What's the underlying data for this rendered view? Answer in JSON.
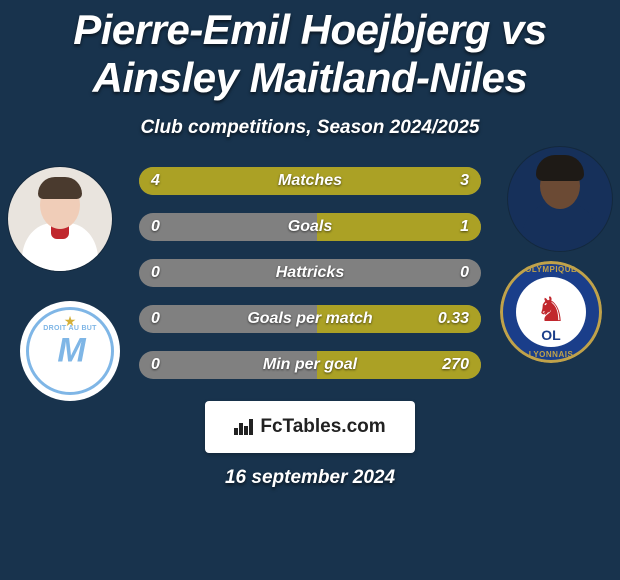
{
  "background_color": "#18334d",
  "text_color": "#ffffff",
  "title": {
    "text": "Pierre-Emil Hoejbjerg vs Ainsley Maitland-Niles",
    "fontsize": 42
  },
  "subtitle": {
    "text": "Club competitions, Season 2024/2025",
    "fontsize": 19
  },
  "players": {
    "left": {
      "skin": "#f0cdb8",
      "hair": "#4a3a2e",
      "kit": "#ffffff",
      "collar": "#c0272d"
    },
    "right": {
      "skin": "#6b4a34",
      "hair": "#1e1a16",
      "kit": "#16305a",
      "bg": "#16305a"
    }
  },
  "clubs": {
    "left": {
      "name": "Olympique de Marseille",
      "primary": "#7fb6e6",
      "bg": "#ffffff",
      "abbrev": "M",
      "motto": "DROIT AU BUT"
    },
    "right": {
      "name": "Olympique Lyonnais",
      "ring": "#c0a24a",
      "blue": "#1a3e8a",
      "red": "#c1272d",
      "abbrev": "OL",
      "lion_color": "#c1272d"
    }
  },
  "bars": {
    "track_color": "#808080",
    "left_color": "#aba125",
    "right_color": "#aba125",
    "label_color": "#ffffff",
    "value_color": "#ffffff",
    "rows": [
      {
        "label": "Matches",
        "left_text": "4",
        "right_text": "3",
        "left_pct": 57,
        "right_pct": 43
      },
      {
        "label": "Goals",
        "left_text": "0",
        "right_text": "1",
        "left_pct": 0,
        "right_pct": 48
      },
      {
        "label": "Hattricks",
        "left_text": "0",
        "right_text": "0",
        "left_pct": 0,
        "right_pct": 0
      },
      {
        "label": "Goals per match",
        "left_text": "0",
        "right_text": "0.33",
        "left_pct": 0,
        "right_pct": 48
      },
      {
        "label": "Min per goal",
        "left_text": "0",
        "right_text": "270",
        "left_pct": 0,
        "right_pct": 48
      }
    ]
  },
  "footer": {
    "site": "FcTables.com",
    "badge_bg": "#ffffff",
    "badge_text": "#222222",
    "date": "16 september 2024",
    "date_fontsize": 19
  }
}
